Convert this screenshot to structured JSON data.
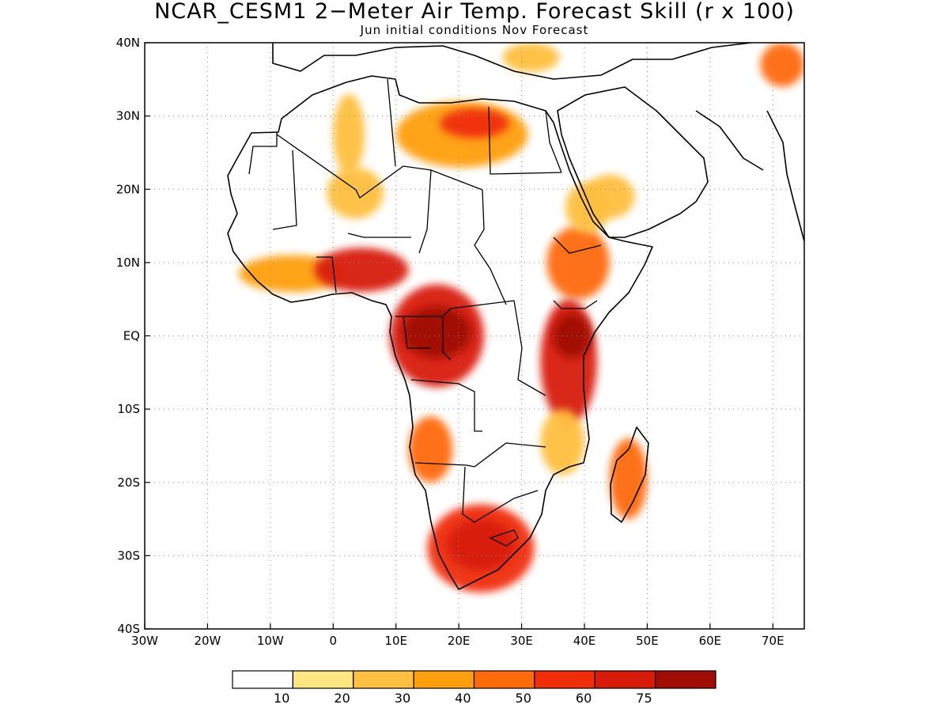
{
  "title": "NCAR_CESM1 2−Meter Air Temp. Forecast Skill (r x 100)",
  "subtitle": "Jun initial conditions   Nov Forecast",
  "map": {
    "lon_range": [
      -30,
      75
    ],
    "lat_range": [
      -40,
      40
    ],
    "lon_ticks": [
      {
        "value": -30,
        "label": "30W"
      },
      {
        "value": -20,
        "label": "20W"
      },
      {
        "value": -10,
        "label": "10W"
      },
      {
        "value": 0,
        "label": "0"
      },
      {
        "value": 10,
        "label": "10E"
      },
      {
        "value": 20,
        "label": "20E"
      },
      {
        "value": 30,
        "label": "30E"
      },
      {
        "value": 40,
        "label": "40E"
      },
      {
        "value": 50,
        "label": "50E"
      },
      {
        "value": 60,
        "label": "60E"
      },
      {
        "value": 70,
        "label": "70E"
      }
    ],
    "lat_ticks": [
      {
        "value": 40,
        "label": "40N"
      },
      {
        "value": 30,
        "label": "30N"
      },
      {
        "value": 20,
        "label": "20N"
      },
      {
        "value": 10,
        "label": "10N"
      },
      {
        "value": 0,
        "label": "EQ"
      },
      {
        "value": -10,
        "label": "10S"
      },
      {
        "value": -20,
        "label": "20S"
      },
      {
        "value": -30,
        "label": "30S"
      },
      {
        "value": -40,
        "label": "40S"
      }
    ],
    "grid": "dotted",
    "outline_color": "#000000",
    "shaded_regions": [
      {
        "name": "Sahara west",
        "lon": [
          0,
          5
        ],
        "lat": [
          22,
          33
        ],
        "level": 2
      },
      {
        "name": "Libya-Egypt",
        "lon": [
          10,
          31
        ],
        "lat": [
          23,
          32
        ],
        "level": 3
      },
      {
        "name": "Libya-Egypt core",
        "lon": [
          17,
          28
        ],
        "lat": [
          27,
          31
        ],
        "level": 5
      },
      {
        "name": "West Sahel",
        "lon": [
          -1,
          8
        ],
        "lat": [
          16,
          23
        ],
        "level": 2
      },
      {
        "name": "Guinea coast",
        "lon": [
          -15,
          2
        ],
        "lat": [
          6,
          11
        ],
        "level": 3
      },
      {
        "name": "Benin-Nigeria",
        "lon": [
          -3,
          12
        ],
        "lat": [
          6,
          12
        ],
        "level": 6
      },
      {
        "name": "Central Africa",
        "lon": [
          9,
          24
        ],
        "lat": [
          -7,
          7
        ],
        "level": 6
      },
      {
        "name": "Congo basin core",
        "lon": [
          11,
          22
        ],
        "lat": [
          -3,
          4
        ],
        "level": 7
      },
      {
        "name": "Ethiopia",
        "lon": [
          34,
          44
        ],
        "lat": [
          5,
          15
        ],
        "level": 4
      },
      {
        "name": "Red Sea coast",
        "lon": [
          37,
          44
        ],
        "lat": [
          14,
          21
        ],
        "level": 2
      },
      {
        "name": "Kenya-Tanzania",
        "lon": [
          33,
          42
        ],
        "lat": [
          -12,
          5
        ],
        "level": 6
      },
      {
        "name": "Kenya core",
        "lon": [
          35,
          41
        ],
        "lat": [
          -3,
          3
        ],
        "level": 7
      },
      {
        "name": "Angola",
        "lon": [
          12,
          19
        ],
        "lat": [
          -20,
          -11
        ],
        "level": 4
      },
      {
        "name": "Mozambique coast",
        "lon": [
          33,
          40
        ],
        "lat": [
          -19,
          -10
        ],
        "level": 2
      },
      {
        "name": "Madagascar",
        "lon": [
          44,
          50
        ],
        "lat": [
          -25,
          -14
        ],
        "level": 4
      },
      {
        "name": "Southern Africa",
        "lon": [
          15,
          32
        ],
        "lat": [
          -35,
          -23
        ],
        "level": 5
      },
      {
        "name": "South Africa core",
        "lon": [
          18,
          29
        ],
        "lat": [
          -32,
          -25
        ],
        "level": 6
      },
      {
        "name": "Iran",
        "lon": [
          68,
          75
        ],
        "lat": [
          34,
          40
        ],
        "level": 4
      },
      {
        "name": "Turkey",
        "lon": [
          27,
          36
        ],
        "lat": [
          36,
          40
        ],
        "level": 2
      },
      {
        "name": "Arabia",
        "lon": [
          40,
          48
        ],
        "lat": [
          16,
          22
        ],
        "level": 2
      }
    ]
  },
  "colorbar": {
    "colors": [
      "#ffffff",
      "#ffe680",
      "#ffbf40",
      "#ff9f0f",
      "#ff6a0a",
      "#f02e0a",
      "#d81a08",
      "#a00d05"
    ],
    "labels": [
      "10",
      "20",
      "30",
      "40",
      "50",
      "60",
      "75"
    ]
  }
}
